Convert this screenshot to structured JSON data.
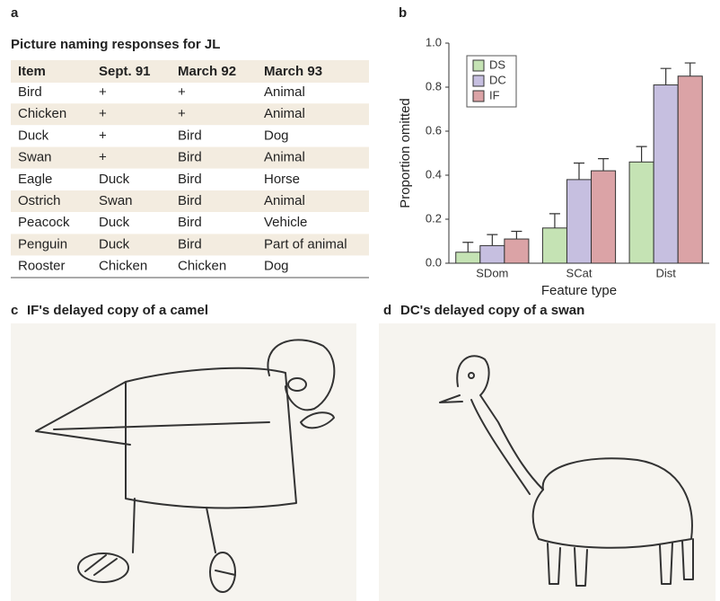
{
  "panel_labels": [
    "a",
    "b",
    "c",
    "d"
  ],
  "table": {
    "title": "Picture naming responses for JL",
    "columns": [
      "Item",
      "Sept. 91",
      "March 92",
      "March 93"
    ],
    "rows": [
      [
        "Bird",
        "+",
        "+",
        "Animal"
      ],
      [
        "Chicken",
        "+",
        "+",
        "Animal"
      ],
      [
        "Duck",
        "+",
        "Bird",
        "Dog"
      ],
      [
        "Swan",
        "+",
        "Bird",
        "Animal"
      ],
      [
        "Eagle",
        "Duck",
        "Bird",
        "Horse"
      ],
      [
        "Ostrich",
        "Swan",
        "Bird",
        "Animal"
      ],
      [
        "Peacock",
        "Duck",
        "Bird",
        "Vehicle"
      ],
      [
        "Penguin",
        "Duck",
        "Bird",
        "Part of animal"
      ],
      [
        "Rooster",
        "Chicken",
        "Chicken",
        "Dog"
      ]
    ]
  },
  "chart_data": {
    "type": "bar",
    "xlabel": "Feature type",
    "ylabel": "Proportion omitted",
    "categories": [
      "SDom",
      "SCat",
      "Dist"
    ],
    "series": [
      {
        "name": "DS",
        "color": "#c5e3b4",
        "values": [
          0.05,
          0.16,
          0.46
        ],
        "errors": [
          0.045,
          0.065,
          0.07
        ]
      },
      {
        "name": "DC",
        "color": "#c6bfe0",
        "values": [
          0.08,
          0.38,
          0.81
        ],
        "errors": [
          0.05,
          0.075,
          0.075
        ]
      },
      {
        "name": "IF",
        "color": "#dba3a6",
        "values": [
          0.11,
          0.42,
          0.85
        ],
        "errors": [
          0.035,
          0.055,
          0.06
        ]
      }
    ],
    "ylim": [
      0,
      1
    ],
    "yticks": [
      {
        "value": 0,
        "label": "0.0"
      },
      0.2,
      0.4,
      0.6,
      0.8,
      {
        "value": 1,
        "label": "1.0"
      }
    ],
    "legend": "upper left"
  },
  "drawings": [
    {
      "caption": "IF's delayed copy of a camel"
    },
    {
      "caption": "DC's delayed copy of a swan"
    }
  ]
}
